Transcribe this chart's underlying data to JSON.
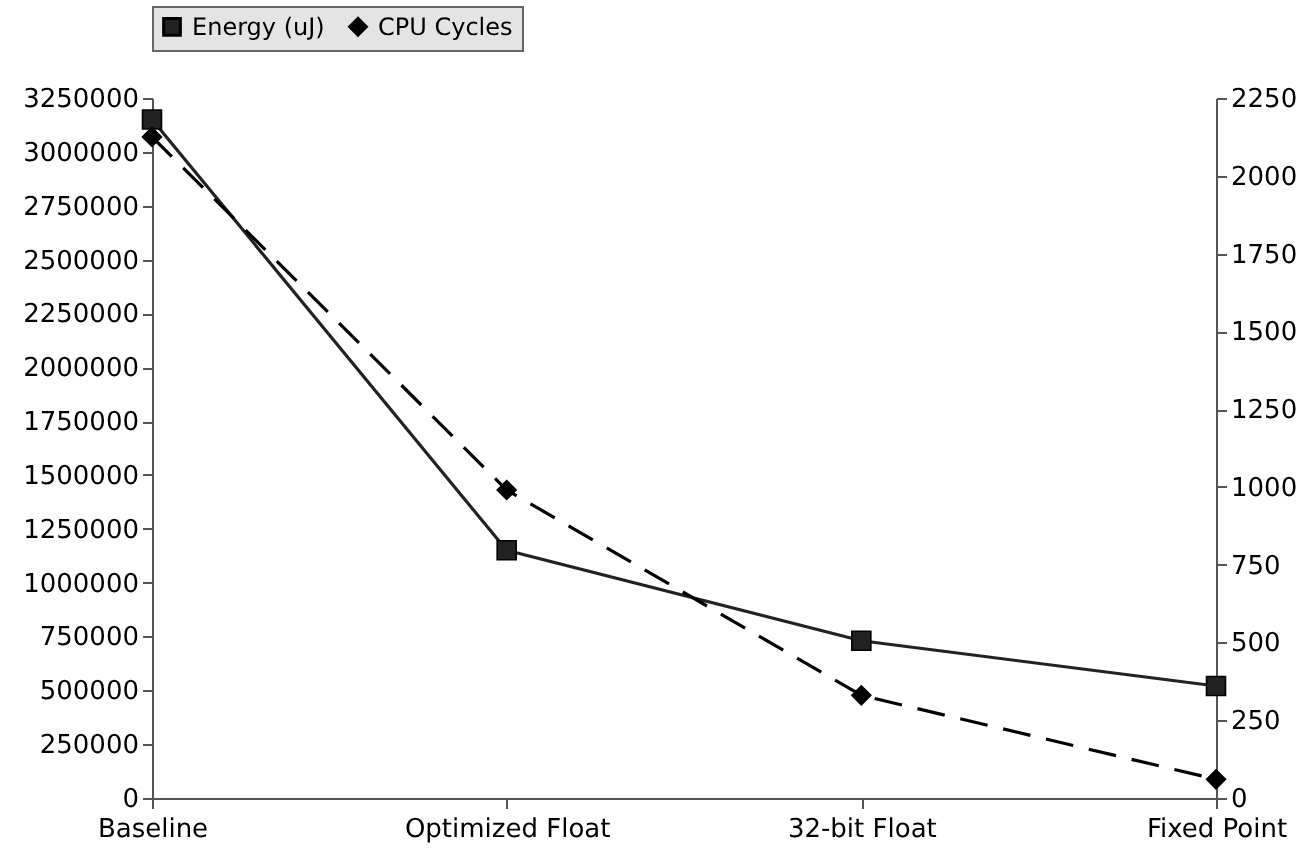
{
  "chart_data": {
    "type": "line",
    "categories": [
      "Baseline",
      "Optimized Float",
      "32-bit Float",
      "Fixed Point"
    ],
    "series": [
      {
        "name": "Energy (uJ)",
        "color": "#222222",
        "values": [
          3150000,
          1150000,
          730000,
          520000
        ],
        "marker": "square",
        "line_style": "solid"
      },
      {
        "name": "CPU Cycles",
        "color": "#000000",
        "values": [
          2125,
          990,
          330,
          60
        ],
        "axis": "y2",
        "marker": "diamond",
        "line_style": "dashed"
      }
    ],
    "ylim": [
      0,
      3250000
    ],
    "yticks": [
      0,
      250000,
      500000,
      750000,
      1000000,
      1250000,
      1500000,
      1750000,
      2000000,
      2250000,
      2500000,
      2750000,
      3000000,
      3250000
    ],
    "y2lim": [
      0,
      2250
    ],
    "y2ticks": [
      0,
      250,
      500,
      750,
      1000,
      1250,
      1500,
      1750,
      2000,
      2250
    ],
    "grid": false,
    "legend": "top"
  }
}
